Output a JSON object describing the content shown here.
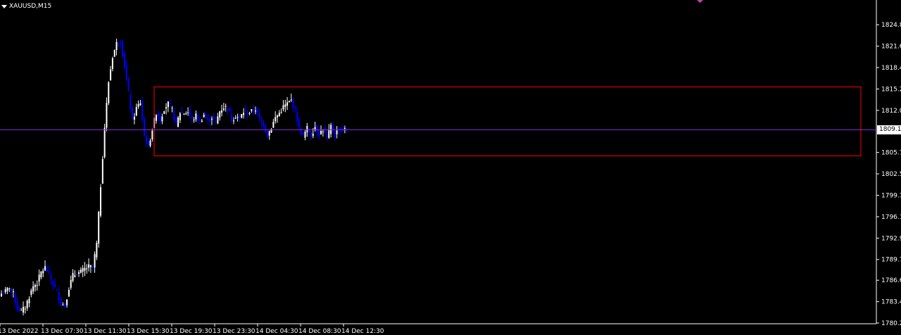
{
  "header": {
    "symbol_label": "XAUUSD,M15",
    "dropdown_icon": "triangle-down-icon"
  },
  "current_price": {
    "value": 1809.1,
    "label": "1809.1"
  },
  "colors": {
    "background": "#000000",
    "axis": "#ffffff",
    "bull_candle": "#ffffff",
    "bear_candle": "#0000ff",
    "rectangle": "#ff0000",
    "price_line": "#8a2be2",
    "marker": "#c040c0"
  },
  "chart_data": {
    "type": "candlestick",
    "symbol": "XAUUSD",
    "timeframe": "M15",
    "ylim": [
      1780.2,
      1826.5
    ],
    "y_ticks": [
      1824.8,
      1821.6,
      1818.4,
      1815.2,
      1812.0,
      1809.1,
      1805.7,
      1802.5,
      1799.3,
      1796.1,
      1792.9,
      1789.7,
      1786.6,
      1783.4,
      1780.2
    ],
    "y_tick_labels": [
      "1824.8",
      "1821.6",
      "1818.4",
      "1815.2",
      "1812.0",
      "1809.1",
      "1805.7",
      "1802.5",
      "1799.3",
      "1796.1",
      "1792.9",
      "1789.7",
      "1786.6",
      "1783.4",
      "1780.2"
    ],
    "x_labels": [
      "13 Dec 2022",
      "13 Dec 07:30",
      "13 Dec 11:30",
      "13 Dec 15:30",
      "13 Dec 19:30",
      "13 Dec 23:30",
      "14 Dec 04:30",
      "14 Dec 08:30",
      "14 Dec 12:30"
    ],
    "close_path": [
      [
        0,
        1784.6
      ],
      [
        2,
        1784.9
      ],
      [
        4,
        1785.6
      ],
      [
        6,
        1784.5
      ],
      [
        8,
        1782.5
      ],
      [
        10,
        1781.9
      ],
      [
        12,
        1782.6
      ],
      [
        14,
        1784.2
      ],
      [
        16,
        1785.7
      ],
      [
        18,
        1786.2
      ],
      [
        20,
        1787.8
      ],
      [
        22,
        1788.5
      ],
      [
        24,
        1787.5
      ],
      [
        26,
        1786.0
      ],
      [
        28,
        1784.8
      ],
      [
        30,
        1783.2
      ],
      [
        32,
        1782.8
      ],
      [
        34,
        1785.5
      ],
      [
        36,
        1787.3
      ],
      [
        38,
        1787.6
      ],
      [
        40,
        1787.8
      ],
      [
        42,
        1788.3
      ],
      [
        44,
        1788.6
      ],
      [
        46,
        1788.5
      ],
      [
        48,
        1792.0
      ],
      [
        50,
        1800.8
      ],
      [
        52,
        1809.5
      ],
      [
        54,
        1816.3
      ],
      [
        56,
        1820.1
      ],
      [
        58,
        1822.0
      ],
      [
        60,
        1822.3
      ],
      [
        62,
        1818.6
      ],
      [
        64,
        1814.5
      ],
      [
        66,
        1810.4
      ],
      [
        68,
        1812.3
      ],
      [
        70,
        1813.2
      ],
      [
        72,
        1808.2
      ],
      [
        74,
        1806.5
      ],
      [
        76,
        1809.2
      ],
      [
        78,
        1811.7
      ],
      [
        80,
        1810.6
      ],
      [
        82,
        1812.3
      ],
      [
        84,
        1813.0
      ],
      [
        86,
        1812.0
      ],
      [
        88,
        1809.8
      ],
      [
        90,
        1811.7
      ],
      [
        92,
        1811.6
      ],
      [
        94,
        1811.8
      ],
      [
        96,
        1810.5
      ],
      [
        98,
        1811.2
      ],
      [
        100,
        1810.3
      ],
      [
        102,
        1811.4
      ],
      [
        104,
        1810.4
      ],
      [
        106,
        1811.0
      ],
      [
        108,
        1810.1
      ],
      [
        110,
        1811.9
      ],
      [
        112,
        1812.5
      ],
      [
        114,
        1812.4
      ],
      [
        116,
        1810.6
      ],
      [
        118,
        1811.2
      ],
      [
        120,
        1810.8
      ],
      [
        122,
        1811.8
      ],
      [
        124,
        1811.6
      ],
      [
        126,
        1811.8
      ],
      [
        128,
        1812.2
      ],
      [
        130,
        1810.7
      ],
      [
        132,
        1809.9
      ],
      [
        134,
        1808.3
      ],
      [
        136,
        1809.5
      ],
      [
        138,
        1810.9
      ],
      [
        140,
        1811.6
      ],
      [
        142,
        1812.5
      ],
      [
        144,
        1813.0
      ],
      [
        146,
        1813.5
      ],
      [
        148,
        1812.0
      ],
      [
        150,
        1809.3
      ],
      [
        152,
        1808.1
      ],
      [
        154,
        1809.3
      ],
      [
        156,
        1808.3
      ],
      [
        158,
        1809.6
      ],
      [
        160,
        1808.5
      ],
      [
        162,
        1809.1
      ],
      [
        164,
        1807.8
      ],
      [
        166,
        1809.6
      ],
      [
        168,
        1808.3
      ],
      [
        170,
        1809.3
      ],
      [
        172,
        1809.1
      ],
      [
        174,
        1809.1
      ]
    ],
    "zone": {
      "top": 1815.5,
      "bottom": 1805.2
    },
    "zone_start_index": 63,
    "price_line": 1809.1
  }
}
